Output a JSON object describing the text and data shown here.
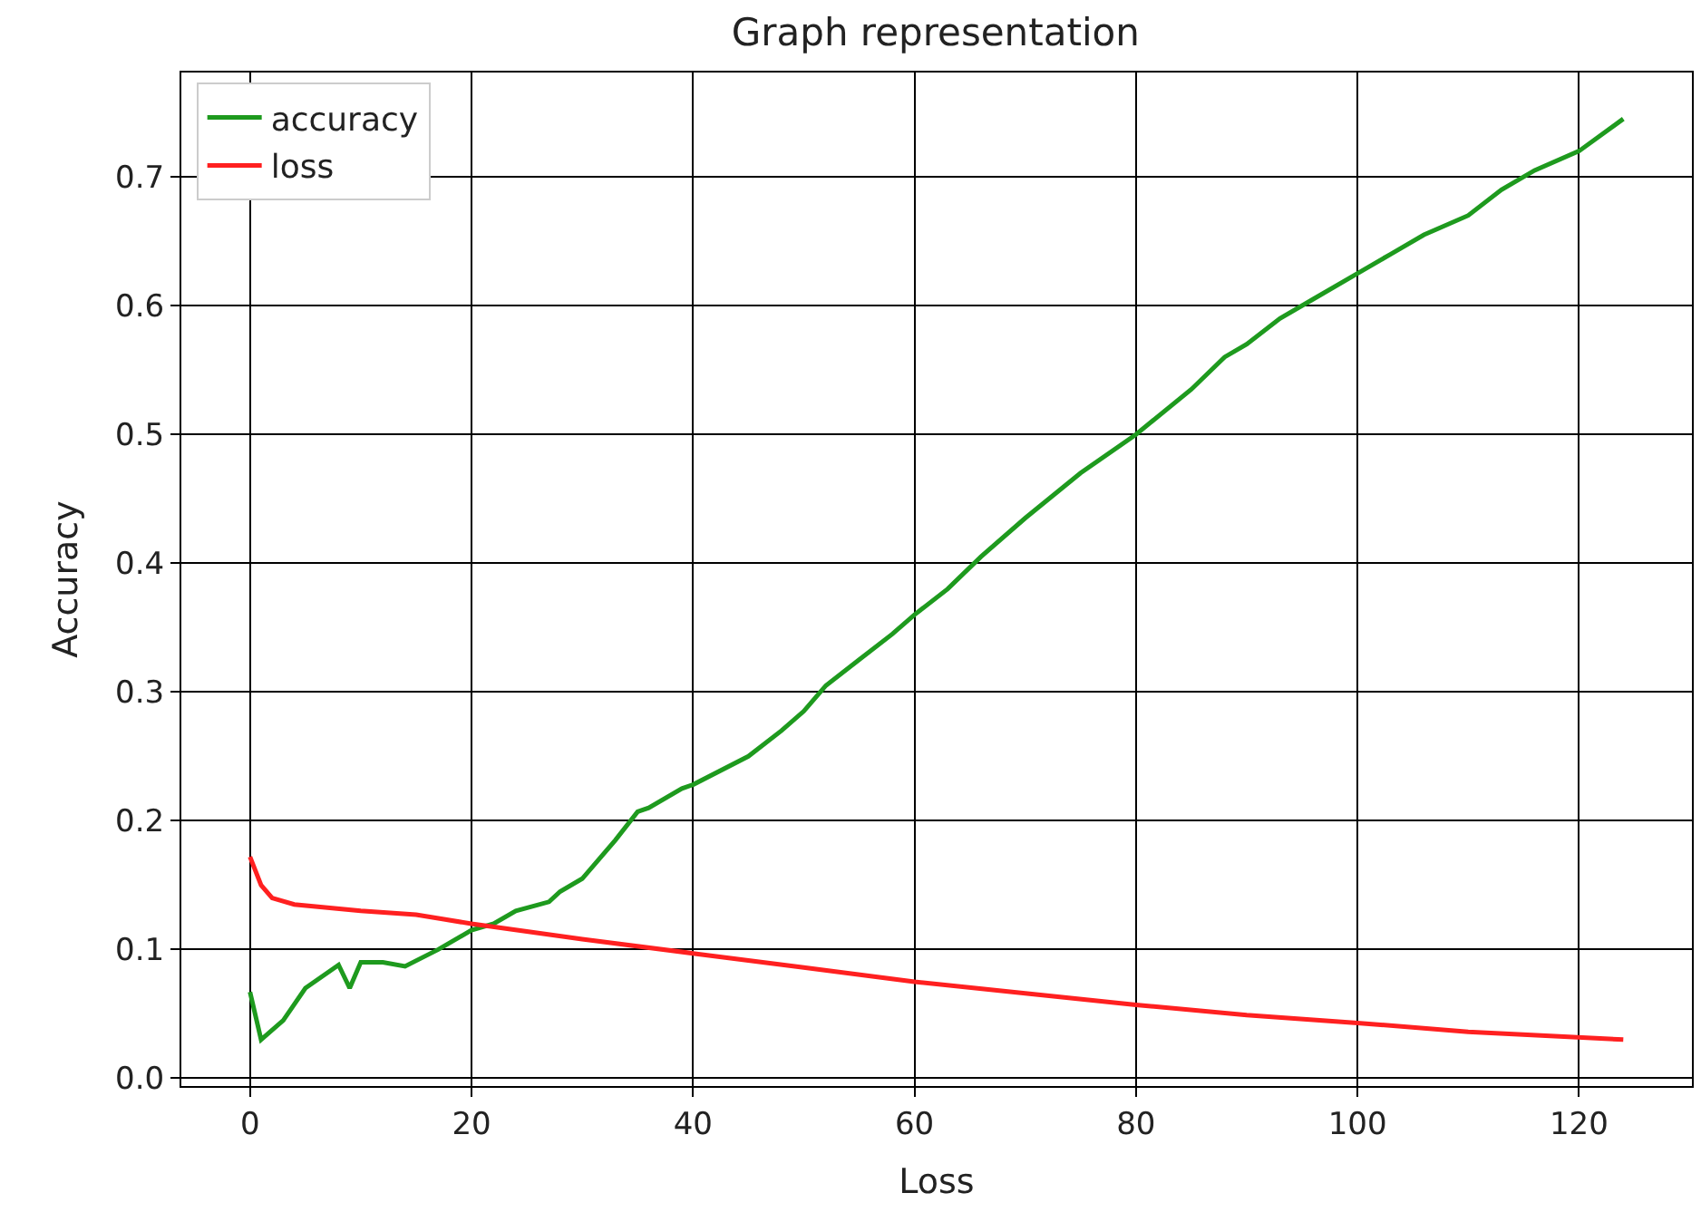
{
  "chart_data": {
    "type": "line",
    "title": "Graph representation",
    "xlabel": "Loss",
    "ylabel": "Accuracy",
    "xlim": [
      -6.2,
      130.2
    ],
    "xticks": [
      0,
      20,
      40,
      60,
      80,
      100,
      120
    ],
    "ylim": [
      -0.006,
      0.781
    ],
    "yticks": [
      {
        "value": 0,
        "label": "0.0"
      },
      0.1,
      0.2,
      0.3,
      0.4,
      0.5,
      0.6,
      0.7
    ],
    "grid": true,
    "legend": "top left",
    "series": [
      {
        "name": "accuracy",
        "color": "#1e9a1e",
        "x": [
          0,
          1,
          3,
          5,
          8,
          9,
          10,
          12,
          14,
          17,
          20,
          22,
          24,
          27,
          28,
          30,
          33,
          35,
          36,
          39,
          40,
          45,
          48,
          50,
          52,
          55,
          58,
          60,
          63,
          66,
          70,
          75,
          80,
          85,
          88,
          90,
          93,
          96,
          100,
          103,
          106,
          110,
          113,
          116,
          120,
          124
        ],
        "values": [
          0.067,
          0.03,
          0.045,
          0.07,
          0.088,
          0.07,
          0.09,
          0.09,
          0.087,
          0.1,
          0.115,
          0.12,
          0.13,
          0.137,
          0.145,
          0.155,
          0.185,
          0.207,
          0.21,
          0.225,
          0.228,
          0.25,
          0.27,
          0.285,
          0.305,
          0.325,
          0.345,
          0.36,
          0.38,
          0.405,
          0.435,
          0.47,
          0.5,
          0.535,
          0.56,
          0.57,
          0.59,
          0.605,
          0.625,
          0.64,
          0.655,
          0.67,
          0.69,
          0.705,
          0.72,
          0.745
        ]
      },
      {
        "name": "loss",
        "color": "#ff2020",
        "x": [
          0,
          1,
          2,
          4,
          10,
          15,
          20,
          30,
          40,
          50,
          60,
          70,
          80,
          90,
          100,
          110,
          124
        ],
        "values": [
          0.172,
          0.15,
          0.14,
          0.135,
          0.13,
          0.127,
          0.12,
          0.108,
          0.097,
          0.086,
          0.075,
          0.066,
          0.057,
          0.049,
          0.043,
          0.036,
          0.03
        ]
      }
    ]
  }
}
